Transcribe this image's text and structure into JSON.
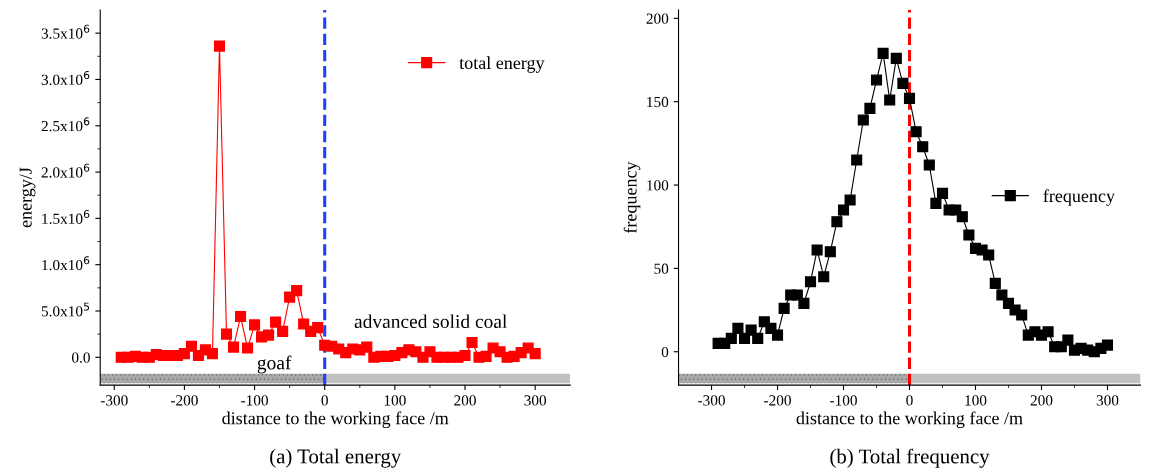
{
  "chart_data": [
    {
      "type": "line",
      "title": "(a) Total energy",
      "xlabel": "distance to the working face /m",
      "ylabel": "energy/J",
      "x": [
        -290,
        -280,
        -270,
        -260,
        -250,
        -240,
        -230,
        -220,
        -210,
        -200,
        -190,
        -180,
        -170,
        -160,
        -150,
        -140,
        -130,
        -120,
        -110,
        -100,
        -90,
        -80,
        -70,
        -60,
        -50,
        -40,
        -30,
        -20,
        -10,
        0,
        10,
        20,
        30,
        40,
        50,
        60,
        70,
        80,
        90,
        100,
        110,
        120,
        130,
        140,
        150,
        160,
        170,
        180,
        190,
        200,
        210,
        220,
        230,
        240,
        250,
        260,
        270,
        280,
        290,
        300
      ],
      "series": [
        {
          "name": "total energy",
          "color": "#ff0000",
          "values": [
            0,
            0,
            10000,
            0,
            0,
            30000,
            20000,
            20000,
            20000,
            40000,
            120000,
            20000,
            80000,
            40000,
            3360000,
            250000,
            110000,
            440000,
            100000,
            350000,
            220000,
            240000,
            380000,
            280000,
            650000,
            720000,
            360000,
            280000,
            320000,
            130000,
            120000,
            90000,
            50000,
            90000,
            80000,
            110000,
            0,
            10000,
            10000,
            20000,
            50000,
            80000,
            60000,
            0,
            60000,
            0,
            0,
            0,
            0,
            20000,
            160000,
            0,
            10000,
            100000,
            60000,
            0,
            10000,
            50000,
            100000,
            40000
          ]
        }
      ],
      "xlim": [
        -320,
        350
      ],
      "xticks": [
        -300,
        -200,
        -100,
        0,
        100,
        200,
        300
      ],
      "ylim": [
        -300000,
        3750000
      ],
      "yticks": [
        {
          "value": 0,
          "label": "0.0"
        },
        {
          "value": 500000,
          "label": "5.0x10$^{5}$"
        },
        {
          "value": 1000000,
          "label": "1.0x10$^{6}$"
        },
        {
          "value": 1500000,
          "label": "1.5x10$^{6}$"
        },
        {
          "value": 2000000,
          "label": "2.0x10$^{6}$"
        },
        {
          "value": 2500000,
          "label": "2.5x10$^{6}$"
        },
        {
          "value": 3000000,
          "label": "3.0x10$^{6}$"
        },
        {
          "value": 3500000,
          "label": "3.5x10$^{6}$"
        }
      ],
      "ref_lines": [
        {
          "axis": "x",
          "value": 0,
          "color": "#1f3fff",
          "line_style": "dashed"
        }
      ],
      "annotations": [
        "goaf",
        "advanced solid coal"
      ],
      "marker": "square",
      "line_style": "solid",
      "legend": "top right",
      "grid": false
    },
    {
      "type": "line",
      "title": "(b) Total frequency",
      "xlabel": "distance to the working face /m",
      "ylabel": "frequency",
      "x": [
        -290,
        -280,
        -270,
        -260,
        -250,
        -240,
        -230,
        -220,
        -210,
        -200,
        -190,
        -180,
        -170,
        -160,
        -150,
        -140,
        -130,
        -120,
        -110,
        -100,
        -90,
        -80,
        -70,
        -60,
        -50,
        -40,
        -30,
        -20,
        -10,
        0,
        10,
        20,
        30,
        40,
        50,
        60,
        70,
        80,
        90,
        100,
        110,
        120,
        130,
        140,
        150,
        160,
        170,
        180,
        190,
        200,
        210,
        220,
        230,
        240,
        250,
        260,
        270,
        280,
        290,
        300
      ],
      "series": [
        {
          "name": "frequency",
          "color": "#000000",
          "values": [
            5,
            5,
            8,
            14,
            8,
            13,
            8,
            18,
            14,
            10,
            26,
            34,
            34,
            29,
            42,
            61,
            45,
            60,
            78,
            85,
            91,
            115,
            139,
            146,
            163,
            179,
            151,
            176,
            161,
            152,
            132,
            123,
            112,
            89,
            95,
            85,
            85,
            81,
            70,
            62,
            61,
            58,
            41,
            34,
            29,
            25,
            22,
            10,
            12,
            10,
            12,
            3,
            3,
            7,
            1,
            2,
            1,
            0,
            2,
            4
          ]
        }
      ],
      "xlim": [
        -350,
        350
      ],
      "xticks": [
        -300,
        -200,
        -100,
        0,
        100,
        200,
        300
      ],
      "ylim": [
        -20,
        205
      ],
      "yticks": [
        0,
        50,
        100,
        150,
        200
      ],
      "ref_lines": [
        {
          "axis": "x",
          "value": 0,
          "color": "#ff0000",
          "line_style": "dashed"
        }
      ],
      "marker": "square",
      "line_style": "solid",
      "legend": "right",
      "grid": false
    }
  ]
}
